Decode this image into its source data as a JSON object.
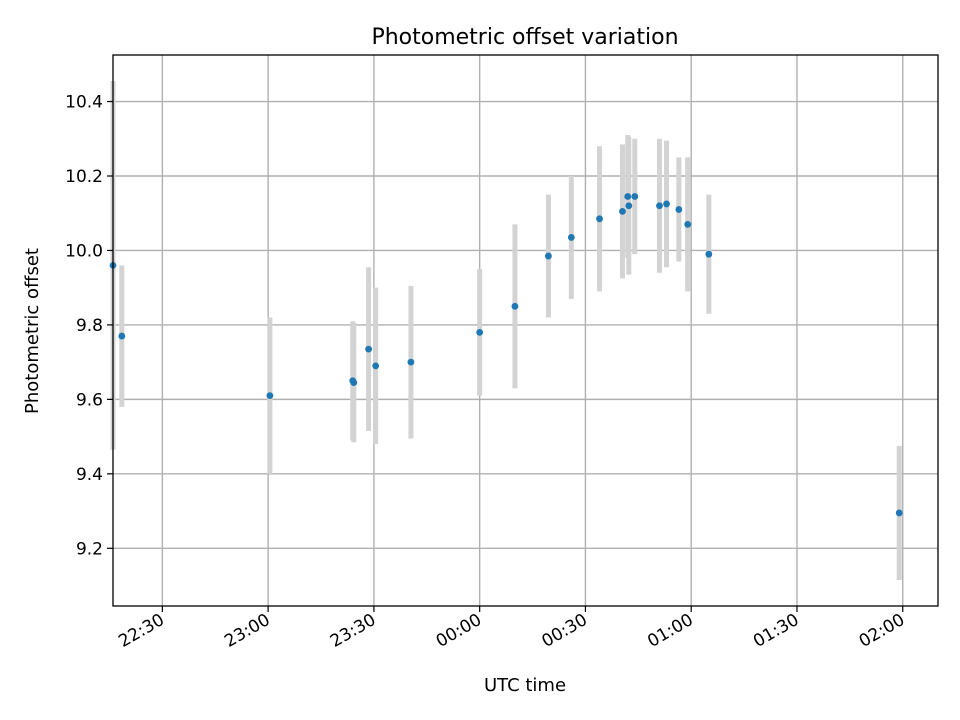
{
  "chart_data": {
    "type": "scatter",
    "title": "Photometric offset variation",
    "xlabel": "UTC time",
    "ylabel": "Photometric offset",
    "x_axis_type": "time",
    "xlim": [
      "22:16",
      "02:10"
    ],
    "ylim": [
      9.045,
      10.525
    ],
    "grid": true,
    "colors": {
      "points": "#1f77b4",
      "error_bars": "#d3d3d3",
      "grid": "#b0b0b0"
    },
    "x_ticks": [
      "22:30",
      "23:00",
      "23:30",
      "00:00",
      "00:30",
      "01:00",
      "01:30",
      "02:00"
    ],
    "y_ticks": [
      "9.2",
      "9.4",
      "9.6",
      "9.8",
      "10.0",
      "10.2",
      "10.4"
    ],
    "series": [
      {
        "points": [
          {
            "x": "22:16",
            "y": 9.96,
            "yerr": 0.495
          },
          {
            "x": "22:18.5",
            "y": 9.77,
            "yerr": 0.19
          },
          {
            "x": "23:00.5",
            "y": 9.61,
            "yerr": 0.21
          },
          {
            "x": "23:24",
            "y": 9.65,
            "yerr": 0.16
          },
          {
            "x": "23:24.3",
            "y": 9.645,
            "yerr": 0.16
          },
          {
            "x": "23:28.5",
            "y": 9.735,
            "yerr": 0.22
          },
          {
            "x": "23:30.5",
            "y": 9.69,
            "yerr": 0.21
          },
          {
            "x": "23:40.5",
            "y": 9.7,
            "yerr": 0.205
          },
          {
            "x": "00:00",
            "y": 9.78,
            "yerr": 0.17
          },
          {
            "x": "00:10",
            "y": 9.85,
            "yerr": 0.22
          },
          {
            "x": "00:19.5",
            "y": 9.985,
            "yerr": 0.165
          },
          {
            "x": "00:26",
            "y": 10.035,
            "yerr": 0.165
          },
          {
            "x": "00:34",
            "y": 10.085,
            "yerr": 0.195
          },
          {
            "x": "00:40.5",
            "y": 10.105,
            "yerr": 0.18
          },
          {
            "x": "00:42",
            "y": 10.145,
            "yerr": 0.165
          },
          {
            "x": "00:42.3",
            "y": 10.12,
            "yerr": 0.185
          },
          {
            "x": "00:44",
            "y": 10.145,
            "yerr": 0.155
          },
          {
            "x": "00:51",
            "y": 10.12,
            "yerr": 0.18
          },
          {
            "x": "00:53",
            "y": 10.125,
            "yerr": 0.17
          },
          {
            "x": "00:56.5",
            "y": 10.11,
            "yerr": 0.14
          },
          {
            "x": "00:59",
            "y": 10.07,
            "yerr": 0.18
          },
          {
            "x": "01:05",
            "y": 9.99,
            "yerr": 0.16
          },
          {
            "x": "01:59",
            "y": 9.295,
            "yerr": 0.18
          }
        ]
      }
    ]
  }
}
